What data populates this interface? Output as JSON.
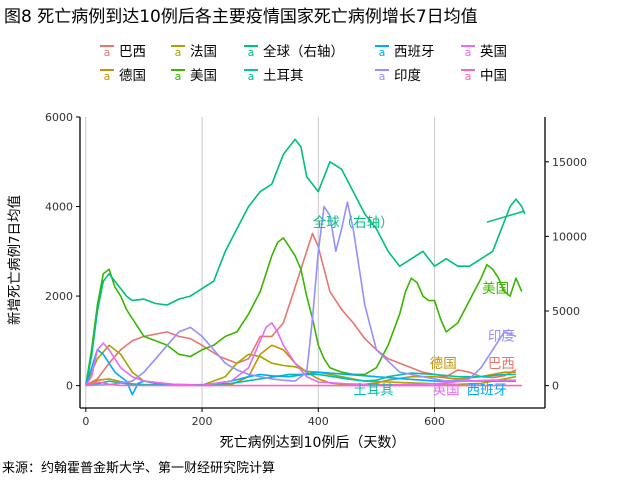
{
  "title": "图8 死亡病例到达10例后各主要疫情国家死亡病例增长7日均值",
  "source": "来源：约翰霍普金斯大学、第一财经研究院计算",
  "chart_data": {
    "type": "line",
    "xlabel": "死亡病例达到10例后（天数）",
    "ylabel": "新增死亡病例7日均值",
    "xlim": [
      -10,
      790
    ],
    "xticks": [
      0,
      200,
      400,
      600
    ],
    "ylim_left": [
      -500,
      6000
    ],
    "yticks_left": [
      0,
      2000,
      4000,
      6000
    ],
    "ylim_right": [
      -1500,
      18000
    ],
    "yticks_right": [
      0,
      5000,
      10000,
      15000
    ],
    "grid": "vertical",
    "legend": "top",
    "series": [
      {
        "name": "巴西",
        "axis": "left",
        "color": "#E8756E",
        "label": "巴西",
        "x": [
          0,
          20,
          40,
          60,
          80,
          100,
          120,
          140,
          160,
          180,
          200,
          230,
          260,
          280,
          300,
          320,
          340,
          360,
          380,
          390,
          400,
          410,
          420,
          440,
          460,
          480,
          500,
          520,
          540,
          560,
          580,
          600,
          620,
          640,
          660,
          680,
          700,
          720,
          740
        ],
        "y": [
          10,
          150,
          500,
          800,
          1000,
          1100,
          1150,
          1200,
          1100,
          1050,
          900,
          650,
          500,
          600,
          1100,
          1100,
          1400,
          2200,
          3000,
          3400,
          3100,
          2600,
          2100,
          1700,
          1400,
          1050,
          800,
          600,
          500,
          400,
          300,
          250,
          200,
          350,
          300,
          200,
          180,
          220,
          350
        ]
      },
      {
        "name": "德国",
        "axis": "left",
        "color": "#C59300",
        "label": "德国",
        "x": [
          0,
          20,
          40,
          60,
          80,
          100,
          150,
          200,
          250,
          280,
          300,
          320,
          340,
          360,
          380,
          400,
          420,
          440,
          460,
          480,
          500,
          520,
          560,
          600,
          640,
          680,
          720,
          740
        ],
        "y": [
          5,
          120,
          150,
          90,
          40,
          20,
          10,
          10,
          20,
          200,
          700,
          900,
          800,
          500,
          300,
          150,
          60,
          30,
          20,
          30,
          60,
          120,
          200,
          200,
          150,
          200,
          300,
          300
        ]
      },
      {
        "name": "法国",
        "axis": "left",
        "color": "#A3A500",
        "label": "",
        "x": [
          0,
          20,
          40,
          60,
          80,
          100,
          150,
          200,
          240,
          260,
          280,
          300,
          320,
          340,
          360,
          380,
          400,
          420,
          440,
          460,
          480,
          520,
          560,
          600,
          640,
          680,
          720,
          740
        ],
        "y": [
          5,
          600,
          900,
          700,
          300,
          100,
          30,
          10,
          200,
          500,
          700,
          650,
          500,
          450,
          420,
          320,
          300,
          250,
          200,
          150,
          100,
          80,
          60,
          40,
          30,
          50,
          150,
          200
        ]
      },
      {
        "name": "美国",
        "axis": "left",
        "color": "#39B600",
        "label": "美国",
        "x": [
          0,
          10,
          20,
          30,
          40,
          50,
          60,
          70,
          80,
          90,
          100,
          120,
          140,
          160,
          180,
          200,
          220,
          240,
          260,
          280,
          300,
          310,
          320,
          330,
          340,
          350,
          360,
          370,
          380,
          390,
          400,
          410,
          420,
          440,
          460,
          480,
          500,
          520,
          540,
          550,
          560,
          570,
          580,
          590,
          600,
          610,
          620,
          640,
          660,
          680,
          690,
          700,
          710,
          720,
          730,
          740,
          750
        ],
        "y": [
          5,
          800,
          1800,
          2500,
          2600,
          2200,
          2000,
          1700,
          1500,
          1300,
          1100,
          1000,
          900,
          700,
          650,
          800,
          900,
          1100,
          1200,
          1600,
          2100,
          2500,
          2900,
          3200,
          3300,
          3100,
          2900,
          2600,
          2000,
          1500,
          900,
          600,
          400,
          300,
          250,
          250,
          400,
          900,
          1600,
          2100,
          2400,
          2300,
          2000,
          1900,
          1900,
          1500,
          1200,
          1400,
          1900,
          2400,
          2700,
          2600,
          2400,
          2100,
          2000,
          2400,
          2100
        ]
      },
      {
        "name": "全球（右轴）",
        "axis": "right",
        "color": "#00BF7D",
        "label": "全球（右轴）",
        "x": [
          0,
          10,
          20,
          30,
          40,
          50,
          60,
          70,
          80,
          100,
          120,
          140,
          160,
          180,
          200,
          220,
          240,
          260,
          280,
          300,
          320,
          340,
          360,
          370,
          380,
          400,
          420,
          440,
          460,
          480,
          500,
          520,
          540,
          560,
          580,
          600,
          620,
          640,
          660,
          680,
          700,
          710,
          720,
          730,
          740,
          750,
          755
        ],
        "y": [
          10,
          2000,
          5000,
          7000,
          7500,
          7000,
          6500,
          6000,
          5700,
          5800,
          5500,
          5400,
          5800,
          6000,
          6500,
          7000,
          9000,
          10500,
          12000,
          13000,
          13500,
          15500,
          16500,
          16000,
          14000,
          13000,
          15000,
          14500,
          13000,
          11500,
          10500,
          9000,
          8000,
          8500,
          9000,
          8000,
          8500,
          8000,
          8000,
          8500,
          9000,
          10000,
          11000,
          12000,
          12500,
          12000,
          11500
        ]
      },
      {
        "name": "土耳其",
        "axis": "left",
        "color": "#00C1AA",
        "label": "土耳其",
        "x": [
          0,
          20,
          40,
          60,
          80,
          100,
          150,
          200,
          250,
          300,
          350,
          400,
          450,
          480,
          500,
          520,
          560,
          600,
          640,
          680,
          720,
          740
        ],
        "y": [
          5,
          40,
          100,
          60,
          30,
          20,
          20,
          20,
          50,
          150,
          250,
          250,
          150,
          100,
          120,
          200,
          280,
          250,
          200,
          200,
          250,
          250
        ]
      },
      {
        "name": "西班牙",
        "axis": "left",
        "color": "#00A9FF",
        "label": "西班牙",
        "x": [
          0,
          10,
          20,
          30,
          40,
          50,
          60,
          70,
          80,
          90,
          100,
          120,
          150,
          200,
          250,
          280,
          300,
          320,
          350,
          400,
          450,
          500,
          550,
          600,
          650,
          700,
          740
        ],
        "y": [
          5,
          400,
          800,
          700,
          500,
          300,
          200,
          100,
          -200,
          50,
          100,
          50,
          20,
          10,
          100,
          200,
          250,
          220,
          200,
          300,
          250,
          200,
          150,
          100,
          100,
          100,
          100
        ]
      },
      {
        "name": "印度",
        "axis": "left",
        "color": "#9590FF",
        "label": "印度",
        "x": [
          0,
          40,
          80,
          100,
          120,
          140,
          160,
          180,
          200,
          220,
          240,
          260,
          280,
          300,
          320,
          340,
          360,
          380,
          390,
          400,
          410,
          420,
          430,
          440,
          450,
          460,
          480,
          500,
          540,
          580,
          620,
          660,
          680,
          700,
          720,
          740
        ],
        "y": [
          5,
          20,
          100,
          300,
          600,
          900,
          1200,
          1300,
          1100,
          800,
          500,
          350,
          250,
          200,
          150,
          120,
          100,
          300,
          1500,
          3000,
          4000,
          3800,
          3000,
          3500,
          4100,
          3500,
          1800,
          800,
          300,
          200,
          100,
          150,
          400,
          800,
          1200,
          1100
        ]
      },
      {
        "name": "英国",
        "axis": "left",
        "color": "#E76BF3",
        "label": "英国",
        "x": [
          0,
          10,
          20,
          30,
          40,
          50,
          60,
          80,
          100,
          150,
          200,
          250,
          280,
          300,
          310,
          320,
          330,
          340,
          360,
          380,
          400,
          450,
          500,
          550,
          600,
          650,
          700,
          740
        ],
        "y": [
          5,
          200,
          800,
          950,
          800,
          600,
          400,
          200,
          100,
          30,
          10,
          100,
          400,
          1000,
          1300,
          1400,
          1200,
          900,
          500,
          200,
          80,
          40,
          20,
          20,
          40,
          100,
          120,
          120
        ]
      },
      {
        "name": "中国",
        "axis": "left",
        "color": "#FF62BC",
        "label": "",
        "x": [
          0,
          10,
          20,
          30,
          40,
          60,
          100,
          200,
          300,
          400,
          500,
          600,
          700,
          750
        ],
        "y": [
          5,
          40,
          80,
          60,
          30,
          5,
          2,
          1,
          1,
          1,
          1,
          1,
          1,
          1
        ]
      }
    ]
  },
  "annotations": [
    {
      "series": "全球（右轴）",
      "text": "全球（右轴）",
      "x": 460,
      "y": 3650,
      "anchor": "middle",
      "color": "#00BF7D",
      "leader_to": [
        755,
        3900
      ],
      "leader_from": [
        690,
        3650
      ]
    },
    {
      "series": "美国",
      "text": "美国",
      "x": 705,
      "y": 2180,
      "anchor": "middle",
      "color": "#39B600"
    },
    {
      "series": "印度",
      "text": "印度",
      "x": 715,
      "y": 1120,
      "anchor": "middle",
      "color": "#9590FF"
    },
    {
      "series": "德国",
      "text": "德国",
      "x": 615,
      "y": 500,
      "anchor": "middle",
      "color": "#C59300"
    },
    {
      "series": "巴西",
      "text": "巴西",
      "x": 715,
      "y": 500,
      "anchor": "middle",
      "color": "#E8756E"
    },
    {
      "series": "土耳其",
      "text": "土耳其",
      "x": 495,
      "y": -90,
      "anchor": "middle",
      "color": "#00C1AA"
    },
    {
      "series": "英国",
      "text": "英国",
      "x": 620,
      "y": -90,
      "anchor": "middle",
      "color": "#E76BF3"
    },
    {
      "series": "西班牙",
      "text": "西班牙",
      "x": 690,
      "y": -90,
      "anchor": "middle",
      "color": "#00A9FF"
    }
  ],
  "legend": {
    "key_glyph": "a",
    "items": [
      {
        "label": "巴西",
        "color": "#E8756E"
      },
      {
        "label": "法国",
        "color": "#A3A500"
      },
      {
        "label": "全球（右轴）",
        "color": "#00BF7D"
      },
      {
        "label": "西班牙",
        "color": "#00A9FF"
      },
      {
        "label": "英国",
        "color": "#E76BF3"
      },
      {
        "label": "德国",
        "color": "#C59300"
      },
      {
        "label": "美国",
        "color": "#39B600"
      },
      {
        "label": "土耳其",
        "color": "#00C1AA"
      },
      {
        "label": "印度",
        "color": "#9590FF"
      },
      {
        "label": "中国",
        "color": "#FF62BC"
      }
    ]
  }
}
